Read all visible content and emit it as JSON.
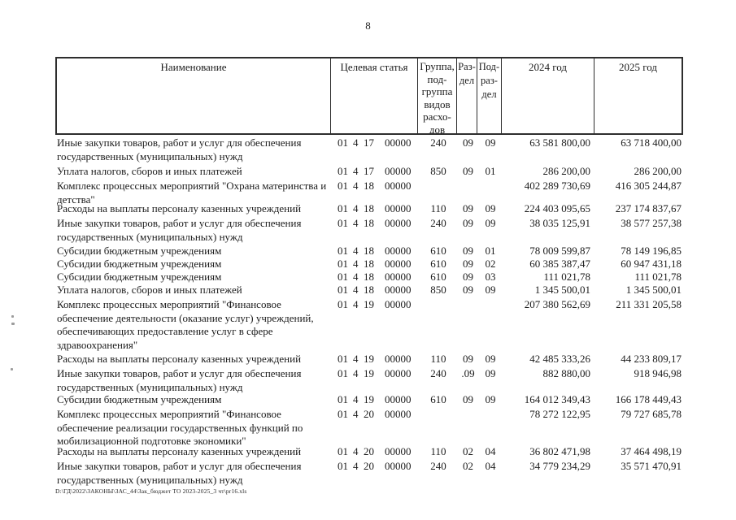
{
  "page": {
    "number": "8",
    "footer_path": "D:\\ГД\\2022\\ЗАКОНЫ\\ЗАС_44\\Зак_бюджет ТО 2023-2025_3 чт\\pr16.xls"
  },
  "colors": {
    "ink": "#1b1b1b",
    "paper": "#ffffff",
    "border": "#2e2e2e"
  },
  "table": {
    "headers": {
      "name": "Наименование",
      "target_article": "Целевая статья",
      "group": "Группа,\nпод-\nгруппа\nвидов\nрасхо-\nдов",
      "section": "Раз-\nдел",
      "subsection": "Под-\nраз-\nдел",
      "y2024": "2024 год",
      "y2025": "2025 год"
    },
    "rows": [
      {
        "name": "Иные закупки товаров, работ и услуг для обеспечения государственных (муниципальных) нужд",
        "ta": [
          "01",
          "4",
          "17",
          "00000"
        ],
        "group": "240",
        "section": "09",
        "subsection": "09",
        "y2024": "63 581 800,00",
        "y2025": "63 718 400,00"
      },
      {
        "name": "Уплата налогов, сборов и иных платежей",
        "ta": [
          "01",
          "4",
          "17",
          "00000"
        ],
        "group": "850",
        "section": "09",
        "subsection": "01",
        "y2024": "286 200,00",
        "y2025": "286 200,00"
      },
      {
        "name": "Комплекс процессных мероприятий \"Охрана материнства и детства\"",
        "ta": [
          "01",
          "4",
          "18",
          "00000"
        ],
        "group": "",
        "section": "",
        "subsection": "",
        "y2024": "402 289 730,69",
        "y2025": "416 305 244,87"
      },
      {
        "name": "Расходы на выплаты персоналу казенных учреждений",
        "ta": [
          "01",
          "4",
          "18",
          "00000"
        ],
        "group": "110",
        "section": "09",
        "subsection": "09",
        "y2024": "224 403 095,65",
        "y2025": "237 174 837,67"
      },
      {
        "name": "Иные закупки товаров, работ и услуг для обеспечения государственных (муниципальных) нужд",
        "ta": [
          "01",
          "4",
          "18",
          "00000"
        ],
        "group": "240",
        "section": "09",
        "subsection": "09",
        "y2024": "38 035 125,91",
        "y2025": "38 577 257,38"
      },
      {
        "name": "Субсидии бюджетным учреждениям",
        "ta": [
          "01",
          "4",
          "18",
          "00000"
        ],
        "group": "610",
        "section": "09",
        "subsection": "01",
        "y2024": "78 009 599,87",
        "y2025": "78 149 196,85"
      },
      {
        "name": "Субсидии бюджетным учреждениям",
        "ta": [
          "01",
          "4",
          "18",
          "00000"
        ],
        "group": "610",
        "section": "09",
        "subsection": "02",
        "y2024": "60 385 387,47",
        "y2025": "60 947 431,18"
      },
      {
        "name": "Субсидии бюджетным учреждениям",
        "ta": [
          "01",
          "4",
          "18",
          "00000"
        ],
        "group": "610",
        "section": "09",
        "subsection": "03",
        "y2024": "111 021,78",
        "y2025": "111 021,78"
      },
      {
        "name": "Уплата налогов, сборов и иных платежей",
        "ta": [
          "01",
          "4",
          "18",
          "00000"
        ],
        "group": "850",
        "section": "09",
        "subsection": "09",
        "y2024": "1 345 500,01",
        "y2025": "1 345 500,01"
      },
      {
        "name": "Комплекс процессных мероприятий \"Финансовое обеспечение деятельности (оказание услуг) учреждений, обеспечивающих предоставление услуг в сфере здравоохранения\"",
        "ta": [
          "01",
          "4",
          "19",
          "00000"
        ],
        "group": "",
        "section": "",
        "subsection": "",
        "y2024": "207 380 562,69",
        "y2025": "211 331 205,58"
      },
      {
        "name": "Расходы на выплаты персоналу казенных учреждений",
        "ta": [
          "01",
          "4",
          "19",
          "00000"
        ],
        "group": "110",
        "section": "09",
        "subsection": "09",
        "y2024": "42 485 333,26",
        "y2025": "44 233 809,17"
      },
      {
        "name": "Иные закупки товаров, работ и услуг для обеспечения государственных (муниципальных) нужд",
        "ta": [
          "01",
          "4",
          "19",
          "00000"
        ],
        "group": "240",
        "section": ".09",
        "subsection": "09",
        "y2024": "882 880,00",
        "y2025": "918 946,98"
      },
      {
        "name": "Субсидии бюджетным учреждениям",
        "ta": [
          "01",
          "4",
          "19",
          "00000"
        ],
        "group": "610",
        "section": "09",
        "subsection": "09",
        "y2024": "164 012 349,43",
        "y2025": "166 178 449,43"
      },
      {
        "name": "Комплекс процессных мероприятий \"Финансовое обеспечение реализации государственных функций по мобилизационной подготовке экономики\"",
        "ta": [
          "01",
          "4",
          "20",
          "00000"
        ],
        "group": "",
        "section": "",
        "subsection": "",
        "y2024": "78 272 122,95",
        "y2025": "79 727 685,78"
      },
      {
        "name": "Расходы на выплаты персоналу казенных учреждений",
        "ta": [
          "01",
          "4",
          "20",
          "00000"
        ],
        "group": "110",
        "section": "02",
        "subsection": "04",
        "y2024": "36 802 471,98",
        "y2025": "37 464 498,19"
      },
      {
        "name": "Иные закупки товаров, работ и услуг для обеспечения государственных (муниципальных) нужд",
        "ta": [
          "01",
          "4",
          "20",
          "00000"
        ],
        "group": "240",
        "section": "02",
        "subsection": "04",
        "y2024": "34 779 234,29",
        "y2025": "35 571 470,91"
      }
    ]
  }
}
